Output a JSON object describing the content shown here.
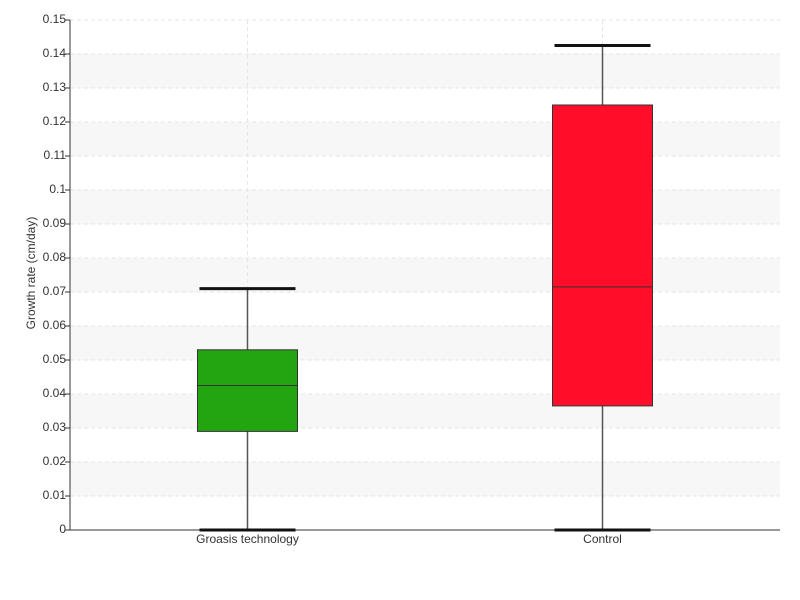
{
  "chart_data": {
    "type": "box",
    "y_label": "Growth rate (cm/day)",
    "categories": [
      "Groasis technology",
      "Control"
    ],
    "boxes": [
      {
        "min": 0,
        "q1": 0.029,
        "median": 0.0425,
        "q3": 0.053,
        "max": 0.071,
        "color": "#22a511"
      },
      {
        "min": 0,
        "q1": 0.0365,
        "median": 0.0715,
        "q3": 0.125,
        "max": 0.1425,
        "color": "#ff0d29"
      }
    ],
    "ylim": [
      0,
      0.15
    ],
    "yticks": [
      0,
      0.01,
      0.02,
      0.03,
      0.04,
      0.05,
      0.06,
      0.07,
      0.08,
      0.09,
      0.1,
      0.11,
      0.12,
      0.13,
      0.14,
      0.15
    ],
    "grid": true
  }
}
